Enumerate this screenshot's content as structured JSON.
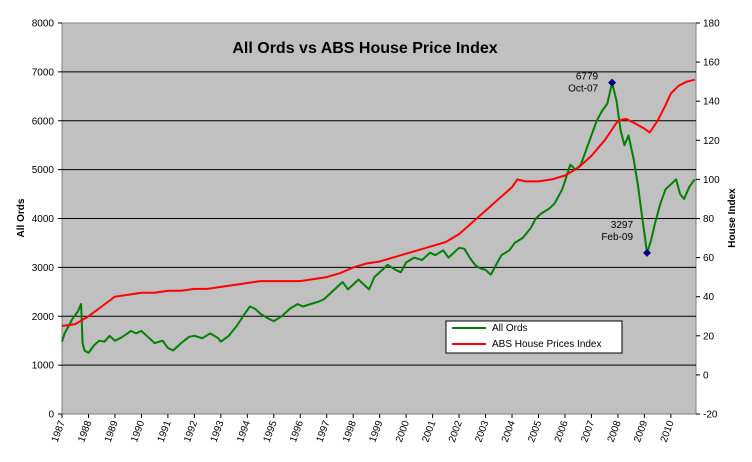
{
  "chart_data": {
    "type": "line",
    "title": "All Ords vs ABS House Price Index",
    "ylabel_left": "All Ords",
    "ylabel_right": "House Index",
    "x_ticks": [
      "1987",
      "1988",
      "1989",
      "1990",
      "1991",
      "1992",
      "1993",
      "1994",
      "1995",
      "1996",
      "1997",
      "1998",
      "1999",
      "2000",
      "2001",
      "2002",
      "2003",
      "2004",
      "2005",
      "2006",
      "2007",
      "2008",
      "2009",
      "2010"
    ],
    "ylim_left": [
      0,
      8000
    ],
    "yticks_left": [
      "0",
      "1000",
      "2000",
      "3000",
      "4000",
      "5000",
      "6000",
      "7000",
      "8000"
    ],
    "ylim_right": [
      -20,
      180
    ],
    "yticks_right": [
      "-20",
      "0",
      "20",
      "40",
      "60",
      "80",
      "100",
      "120",
      "140",
      "160",
      "180"
    ],
    "xlim": [
      1987,
      2010.95
    ],
    "grid": "horizontal",
    "plot_background": "#c0c0c0",
    "legend_position": "bottom-right",
    "series": [
      {
        "name": "All Ords",
        "axis": "left",
        "color": "#008000",
        "points": [
          [
            1987.0,
            1480
          ],
          [
            1987.1,
            1650
          ],
          [
            1987.25,
            1800
          ],
          [
            1987.4,
            1950
          ],
          [
            1987.6,
            2100
          ],
          [
            1987.72,
            2250
          ],
          [
            1987.78,
            1450
          ],
          [
            1987.85,
            1300
          ],
          [
            1988.0,
            1250
          ],
          [
            1988.2,
            1400
          ],
          [
            1988.4,
            1500
          ],
          [
            1988.6,
            1480
          ],
          [
            1988.8,
            1600
          ],
          [
            1989.0,
            1500
          ],
          [
            1989.2,
            1550
          ],
          [
            1989.4,
            1620
          ],
          [
            1989.6,
            1700
          ],
          [
            1989.8,
            1650
          ],
          [
            1990.0,
            1700
          ],
          [
            1990.2,
            1600
          ],
          [
            1990.5,
            1450
          ],
          [
            1990.8,
            1500
          ],
          [
            1991.0,
            1350
          ],
          [
            1991.2,
            1300
          ],
          [
            1991.5,
            1450
          ],
          [
            1991.8,
            1580
          ],
          [
            1992.0,
            1600
          ],
          [
            1992.3,
            1550
          ],
          [
            1992.6,
            1650
          ],
          [
            1992.9,
            1550
          ],
          [
            1993.0,
            1480
          ],
          [
            1993.3,
            1600
          ],
          [
            1993.6,
            1800
          ],
          [
            1993.9,
            2050
          ],
          [
            1994.1,
            2200
          ],
          [
            1994.3,
            2150
          ],
          [
            1994.5,
            2050
          ],
          [
            1994.8,
            1950
          ],
          [
            1995.0,
            1900
          ],
          [
            1995.3,
            2000
          ],
          [
            1995.6,
            2150
          ],
          [
            1995.9,
            2250
          ],
          [
            1996.1,
            2200
          ],
          [
            1996.4,
            2250
          ],
          [
            1996.7,
            2300
          ],
          [
            1996.9,
            2350
          ],
          [
            1997.1,
            2450
          ],
          [
            1997.4,
            2600
          ],
          [
            1997.6,
            2700
          ],
          [
            1997.8,
            2550
          ],
          [
            1998.0,
            2650
          ],
          [
            1998.2,
            2750
          ],
          [
            1998.4,
            2650
          ],
          [
            1998.6,
            2550
          ],
          [
            1998.8,
            2800
          ],
          [
            1999.0,
            2900
          ],
          [
            1999.3,
            3050
          ],
          [
            1999.6,
            2950
          ],
          [
            1999.8,
            2900
          ],
          [
            2000.0,
            3100
          ],
          [
            2000.3,
            3200
          ],
          [
            2000.6,
            3150
          ],
          [
            2000.9,
            3300
          ],
          [
            2001.1,
            3250
          ],
          [
            2001.4,
            3350
          ],
          [
            2001.6,
            3200
          ],
          [
            2001.8,
            3300
          ],
          [
            2002.0,
            3400
          ],
          [
            2002.2,
            3380
          ],
          [
            2002.4,
            3200
          ],
          [
            2002.6,
            3050
          ],
          [
            2002.8,
            2980
          ],
          [
            2003.0,
            2950
          ],
          [
            2003.2,
            2850
          ],
          [
            2003.4,
            3050
          ],
          [
            2003.6,
            3250
          ],
          [
            2003.9,
            3350
          ],
          [
            2004.1,
            3500
          ],
          [
            2004.4,
            3600
          ],
          [
            2004.7,
            3800
          ],
          [
            2004.9,
            4000
          ],
          [
            2005.1,
            4100
          ],
          [
            2005.4,
            4200
          ],
          [
            2005.6,
            4300
          ],
          [
            2005.9,
            4600
          ],
          [
            2006.2,
            5100
          ],
          [
            2006.4,
            5000
          ],
          [
            2006.6,
            5100
          ],
          [
            2006.8,
            5400
          ],
          [
            2007.0,
            5700
          ],
          [
            2007.2,
            6000
          ],
          [
            2007.4,
            6200
          ],
          [
            2007.6,
            6350
          ],
          [
            2007.78,
            6779
          ],
          [
            2007.95,
            6400
          ],
          [
            2008.1,
            5800
          ],
          [
            2008.25,
            5500
          ],
          [
            2008.4,
            5700
          ],
          [
            2008.6,
            5200
          ],
          [
            2008.75,
            4700
          ],
          [
            2008.9,
            4100
          ],
          [
            2009.0,
            3700
          ],
          [
            2009.1,
            3297
          ],
          [
            2009.25,
            3550
          ],
          [
            2009.4,
            3900
          ],
          [
            2009.6,
            4300
          ],
          [
            2009.8,
            4600
          ],
          [
            2010.0,
            4700
          ],
          [
            2010.2,
            4800
          ],
          [
            2010.35,
            4500
          ],
          [
            2010.5,
            4400
          ],
          [
            2010.7,
            4650
          ],
          [
            2010.9,
            4800
          ]
        ]
      },
      {
        "name": "ABS House Prices Index",
        "axis": "right",
        "color": "#ff0000",
        "points": [
          [
            1987.0,
            25
          ],
          [
            1987.5,
            26
          ],
          [
            1988.0,
            30
          ],
          [
            1988.5,
            35
          ],
          [
            1989.0,
            40
          ],
          [
            1989.5,
            41
          ],
          [
            1990.0,
            42
          ],
          [
            1990.5,
            42
          ],
          [
            1991.0,
            43
          ],
          [
            1991.5,
            43
          ],
          [
            1992.0,
            44
          ],
          [
            1992.5,
            44
          ],
          [
            1993.0,
            45
          ],
          [
            1993.5,
            46
          ],
          [
            1994.0,
            47
          ],
          [
            1994.5,
            48
          ],
          [
            1995.0,
            48
          ],
          [
            1995.5,
            48
          ],
          [
            1996.0,
            48
          ],
          [
            1996.5,
            49
          ],
          [
            1997.0,
            50
          ],
          [
            1997.5,
            52
          ],
          [
            1998.0,
            55
          ],
          [
            1998.5,
            57
          ],
          [
            1999.0,
            58
          ],
          [
            1999.5,
            60
          ],
          [
            2000.0,
            62
          ],
          [
            2000.5,
            64
          ],
          [
            2001.0,
            66
          ],
          [
            2001.5,
            68
          ],
          [
            2002.0,
            72
          ],
          [
            2002.5,
            78
          ],
          [
            2003.0,
            84
          ],
          [
            2003.5,
            90
          ],
          [
            2004.0,
            96
          ],
          [
            2004.2,
            100
          ],
          [
            2004.5,
            99
          ],
          [
            2005.0,
            99
          ],
          [
            2005.5,
            100
          ],
          [
            2006.0,
            102
          ],
          [
            2006.5,
            106
          ],
          [
            2007.0,
            112
          ],
          [
            2007.5,
            120
          ],
          [
            2008.0,
            130
          ],
          [
            2008.3,
            131
          ],
          [
            2008.6,
            129
          ],
          [
            2009.0,
            126
          ],
          [
            2009.2,
            124
          ],
          [
            2009.5,
            130
          ],
          [
            2009.8,
            138
          ],
          [
            2010.0,
            144
          ],
          [
            2010.3,
            148
          ],
          [
            2010.6,
            150
          ],
          [
            2010.9,
            151
          ]
        ]
      }
    ],
    "markers": [
      {
        "x": 2007.78,
        "y": 6779,
        "label_value": "6779",
        "label_date": "Oct-07",
        "color": "#000080"
      },
      {
        "x": 2009.1,
        "y": 3297,
        "label_value": "3297",
        "label_date": "Feb-09",
        "color": "#000080"
      }
    ]
  }
}
